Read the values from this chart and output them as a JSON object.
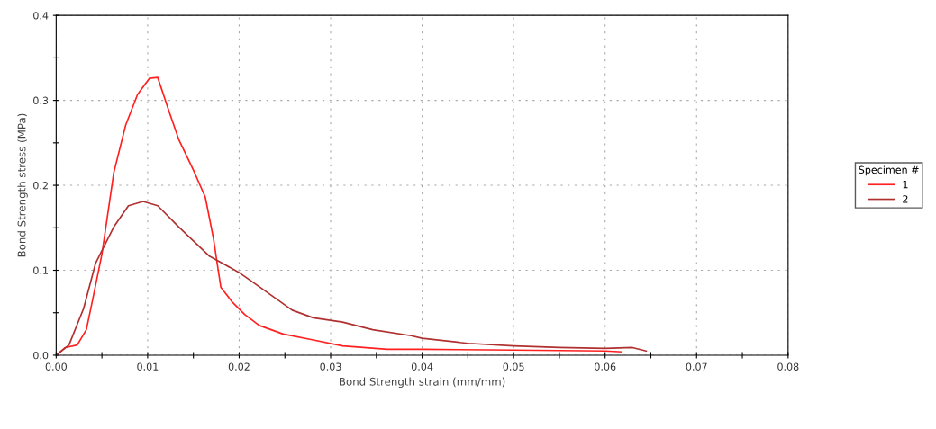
{
  "chart_data": {
    "type": "line",
    "xlabel": "Bond Strength strain (mm/mm)",
    "ylabel": "Bond Strength stress (MPa)",
    "legend_title": "Specimen #",
    "legend": "right",
    "grid": true,
    "line_style": "solid",
    "xlim": [
      0,
      0.08
    ],
    "ylim": [
      0,
      0.4
    ],
    "xticks": [
      {
        "value": 0,
        "label": "0.00"
      },
      {
        "value": 0.005,
        "label": null
      },
      {
        "value": 0.01,
        "label": "0.01"
      },
      {
        "value": 0.015,
        "label": null
      },
      {
        "value": 0.02,
        "label": "0.02"
      },
      {
        "value": 0.025,
        "label": null
      },
      {
        "value": 0.03,
        "label": "0.03"
      },
      {
        "value": 0.035,
        "label": null
      },
      {
        "value": 0.04,
        "label": "0.04"
      },
      {
        "value": 0.045,
        "label": null
      },
      {
        "value": 0.05,
        "label": "0.05"
      },
      {
        "value": 0.055,
        "label": null
      },
      {
        "value": 0.06,
        "label": "0.06"
      },
      {
        "value": 0.065,
        "label": null
      },
      {
        "value": 0.07,
        "label": "0.07"
      },
      {
        "value": 0.075,
        "label": null
      },
      {
        "value": 0.08,
        "label": "0.08"
      }
    ],
    "yticks": [
      {
        "value": 0,
        "label": "0.0"
      },
      {
        "value": 0.05,
        "label": null
      },
      {
        "value": 0.1,
        "label": "0.1"
      },
      {
        "value": 0.15,
        "label": null
      },
      {
        "value": 0.2,
        "label": "0.2"
      },
      {
        "value": 0.25,
        "label": null
      },
      {
        "value": 0.3,
        "label": "0.3"
      },
      {
        "value": 0.35,
        "label": null
      },
      {
        "value": 0.4,
        "label": "0.4"
      }
    ],
    "series": [
      {
        "name": "1",
        "color": "#ff2020",
        "x": [
          0,
          0.001,
          0.0023,
          0.0033,
          0.004,
          0.005,
          0.0063,
          0.0076,
          0.0089,
          0.0102,
          0.0111,
          0.0124,
          0.0134,
          0.015,
          0.0163,
          0.0172,
          0.0177,
          0.018,
          0.0193,
          0.0206,
          0.0222,
          0.0248,
          0.0281,
          0.0313,
          0.0362,
          0.04,
          0.05,
          0.06,
          0.0618
        ],
        "values": [
          0,
          0.009,
          0.012,
          0.03,
          0.066,
          0.119,
          0.215,
          0.271,
          0.307,
          0.326,
          0.327,
          0.285,
          0.254,
          0.218,
          0.186,
          0.137,
          0.101,
          0.08,
          0.062,
          0.048,
          0.035,
          0.025,
          0.018,
          0.011,
          0.007,
          0.007,
          0.006,
          0.005,
          0.004
        ]
      },
      {
        "name": "2",
        "color": "#b03030",
        "x": [
          0,
          0.0014,
          0.003,
          0.0043,
          0.0063,
          0.0079,
          0.0095,
          0.0111,
          0.0134,
          0.0167,
          0.0199,
          0.0219,
          0.0258,
          0.0281,
          0.0313,
          0.0346,
          0.0388,
          0.04,
          0.045,
          0.05,
          0.055,
          0.06,
          0.063,
          0.0645
        ],
        "values": [
          0,
          0.012,
          0.055,
          0.108,
          0.151,
          0.176,
          0.181,
          0.176,
          0.151,
          0.117,
          0.098,
          0.083,
          0.053,
          0.044,
          0.039,
          0.03,
          0.023,
          0.02,
          0.014,
          0.011,
          0.009,
          0.008,
          0.009,
          0.005
        ]
      }
    ]
  }
}
